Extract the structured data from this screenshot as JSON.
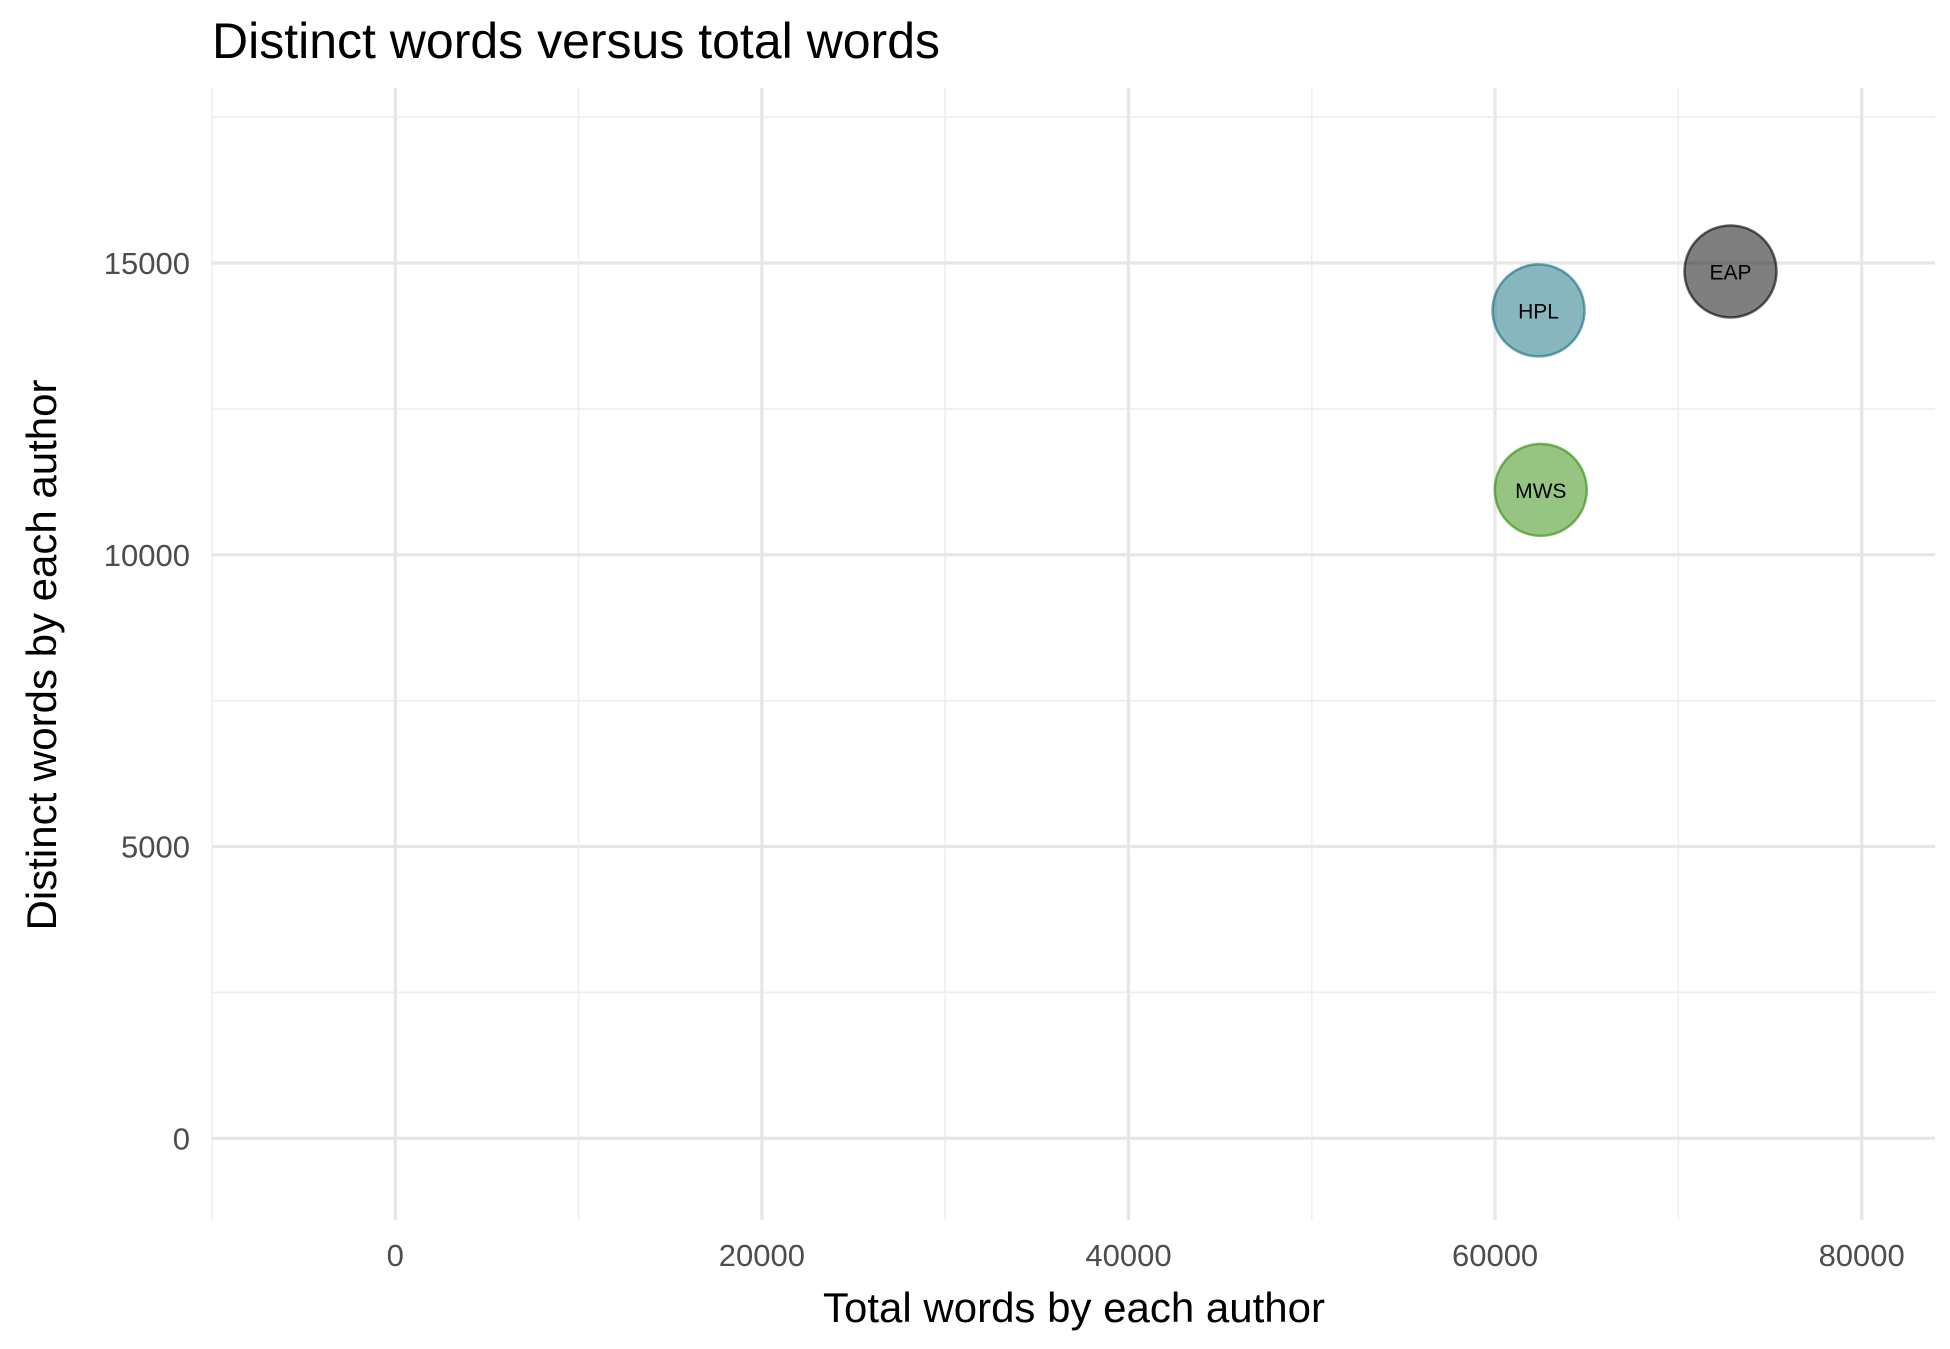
{
  "chart_data": {
    "type": "scatter",
    "title": "Distinct words versus total words",
    "xlabel": "Total words by each author",
    "ylabel": "Distinct words by each author",
    "xlim": [
      -10000,
      84000
    ],
    "ylim": [
      -1400,
      18000
    ],
    "x_ticks": [
      0,
      20000,
      40000,
      60000,
      80000
    ],
    "y_ticks": [
      0,
      5000,
      10000,
      15000
    ],
    "grid": true,
    "legend": "none",
    "points": [
      {
        "label": "EAP",
        "x": 72844,
        "y": 14856,
        "color": "#000000"
      },
      {
        "label": "HPL",
        "x": 62371,
        "y": 14188,
        "color": "#0f6e80"
      },
      {
        "label": "MWS",
        "x": 62492,
        "y": 11113,
        "color": "#2e8b07"
      }
    ]
  }
}
